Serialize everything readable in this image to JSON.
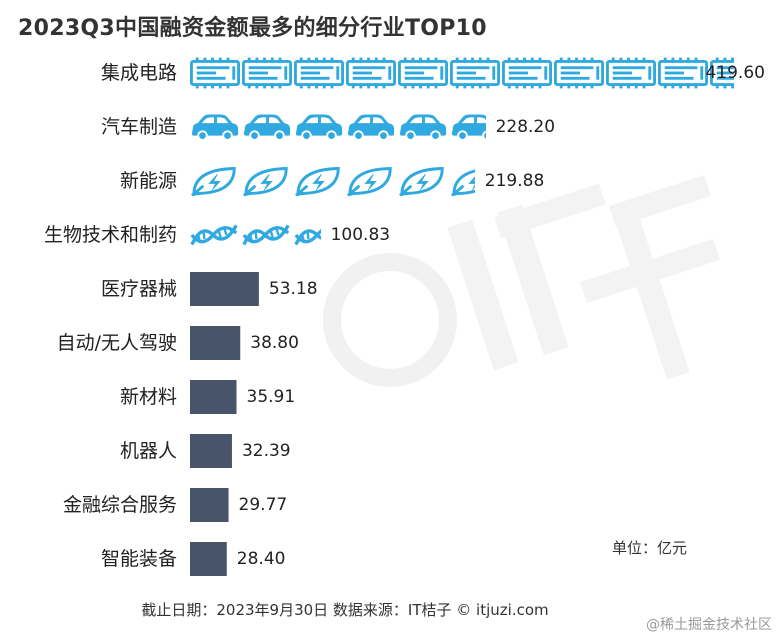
{
  "chart_data": {
    "type": "bar",
    "orientation": "horizontal",
    "title": "2023Q3中国融资金额最多的细分行业TOP10",
    "categories": [
      "集成电路",
      "汽车制造",
      "新能源",
      "生物技术和制药",
      "医疗器械",
      "自动/无人驾驶",
      "新材料",
      "机器人",
      "金融综合服务",
      "智能装备"
    ],
    "values": [
      419.6,
      228.2,
      219.88,
      100.83,
      53.18,
      38.8,
      35.91,
      32.39,
      29.77,
      28.4
    ],
    "value_labels": [
      "419.60",
      "228.20",
      "219.88",
      "100.83",
      "53.18",
      "38.80",
      "35.91",
      "32.39",
      "29.77",
      "28.40"
    ],
    "icon_styles": [
      "chip-icon",
      "car-icon",
      "leaf-energy-icon",
      "dna-icon",
      "bar",
      "bar",
      "bar",
      "bar",
      "bar",
      "bar"
    ],
    "unit_note": "单位：亿元",
    "xlabel": "",
    "ylabel": "",
    "xlim": [
      0,
      420
    ]
  },
  "colors": {
    "icon_blue": "#2fa9e0",
    "bar_dark": "#475469",
    "title": "#333333",
    "watermark": "#ececec"
  },
  "footer": "截止日期：2023年9月30日    数据来源：IT桔子 © itjuzi.com",
  "credit": "@稀土掘金技术社区"
}
